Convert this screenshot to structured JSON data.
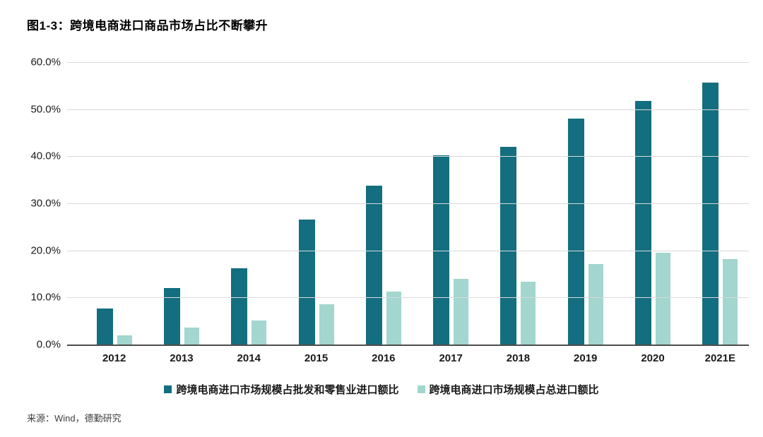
{
  "figure": {
    "title": "图1-3：跨境电商进口商品市场占比不断攀升",
    "source": "来源：Wind，德勤研究"
  },
  "chart_data": {
    "type": "bar",
    "title": "图1-3：跨境电商进口商品市场占比不断攀升",
    "categories": [
      "2012",
      "2013",
      "2014",
      "2015",
      "2016",
      "2017",
      "2018",
      "2019",
      "2020",
      "2021E"
    ],
    "series": [
      {
        "name": "跨境电商进口市场规模占批发和零售业进口额比",
        "color": "#136e7f",
        "values": [
          7.6,
          12.0,
          16.2,
          26.5,
          33.8,
          40.2,
          42.0,
          48.0,
          51.7,
          55.7
        ]
      },
      {
        "name": "跨境电商进口市场规模占总进口额比",
        "color": "#a2d6ce",
        "values": [
          2.0,
          3.6,
          5.1,
          8.5,
          11.3,
          14.0,
          13.4,
          17.1,
          19.5,
          18.2
        ]
      }
    ],
    "xlabel": "",
    "ylabel": "",
    "ylim": [
      0,
      60
    ],
    "ytick_step": 10,
    "yticks": [
      "60.0%",
      "50.0%",
      "40.0%",
      "30.0%",
      "20.0%",
      "10.0%",
      "0.0%"
    ],
    "grid": true,
    "legend_position": "bottom",
    "colors": {
      "gridline": "#d9d9d9",
      "axis_line": "#4d4d4d",
      "tick_text": "#1a1a1a"
    }
  }
}
